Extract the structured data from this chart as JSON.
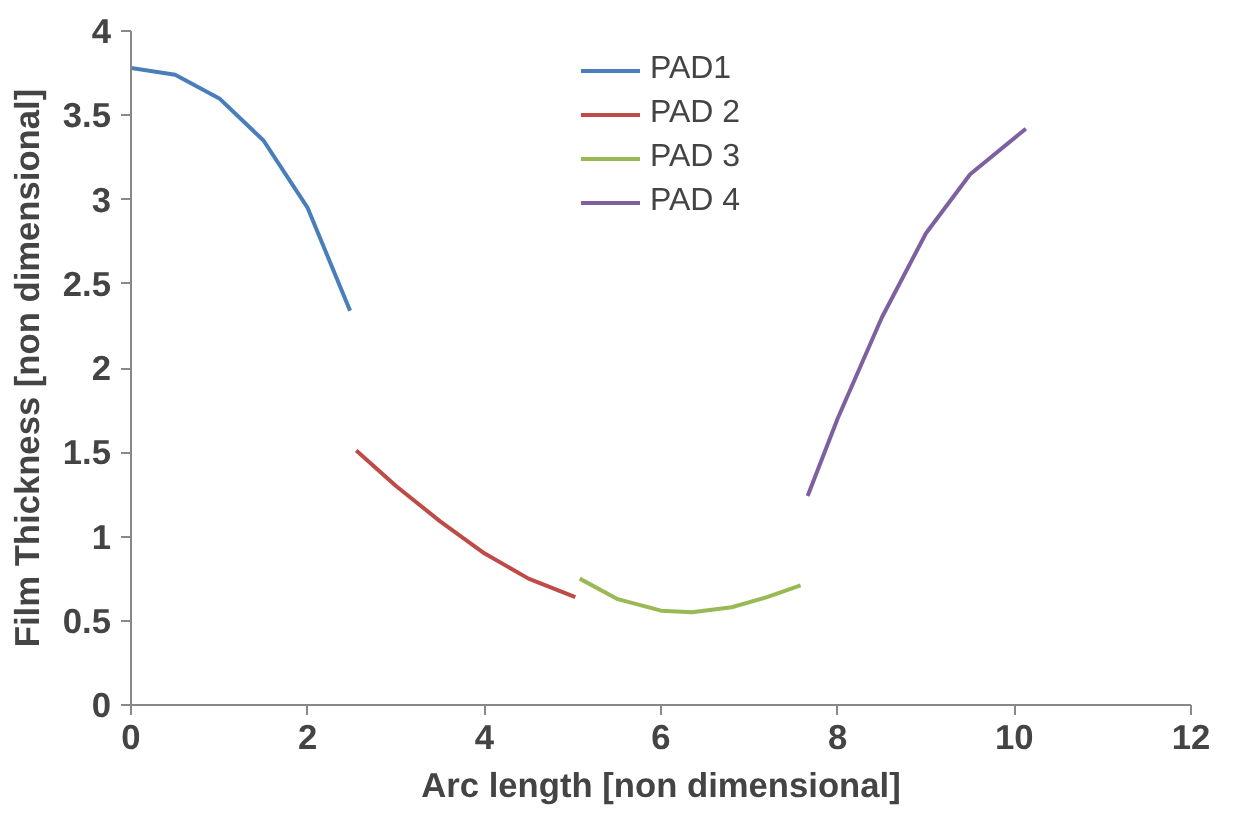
{
  "chart_data": {
    "type": "line",
    "xlabel": "Arc length [non dimensional]",
    "ylabel": "Film Thickness [non dimensional]",
    "xlim": [
      0,
      12
    ],
    "xticks": [
      0,
      2,
      4,
      6,
      8,
      10,
      12
    ],
    "ylim": [
      0,
      4
    ],
    "yticks": [
      0,
      0.5,
      1,
      1.5,
      2,
      2.5,
      3,
      3.5,
      4
    ],
    "grid": false,
    "legend": "top",
    "marker": "none",
    "line_style": "solid",
    "series": [
      {
        "name": "PAD1",
        "color": "#4a7ebb",
        "x": [
          0,
          0.5,
          1,
          1.5,
          2,
          2.48
        ],
        "values": [
          3.78,
          3.74,
          3.6,
          3.35,
          2.95,
          2.34
        ]
      },
      {
        "name": "PAD 2",
        "color": "#be4b48",
        "x": [
          2.55,
          3,
          3.5,
          4,
          4.5,
          5.03
        ],
        "values": [
          1.51,
          1.3,
          1.09,
          0.9,
          0.75,
          0.64
        ]
      },
      {
        "name": "PAD 3",
        "color": "#98b954",
        "x": [
          5.08,
          5.5,
          6,
          6.35,
          6.8,
          7.2,
          7.58
        ],
        "values": [
          0.75,
          0.63,
          0.56,
          0.55,
          0.58,
          0.64,
          0.71
        ]
      },
      {
        "name": "PAD 4",
        "color": "#7d60a0",
        "x": [
          7.66,
          8,
          8.5,
          9,
          9.5,
          10.13
        ],
        "values": [
          1.24,
          1.7,
          2.3,
          2.8,
          3.15,
          3.42
        ]
      }
    ]
  }
}
